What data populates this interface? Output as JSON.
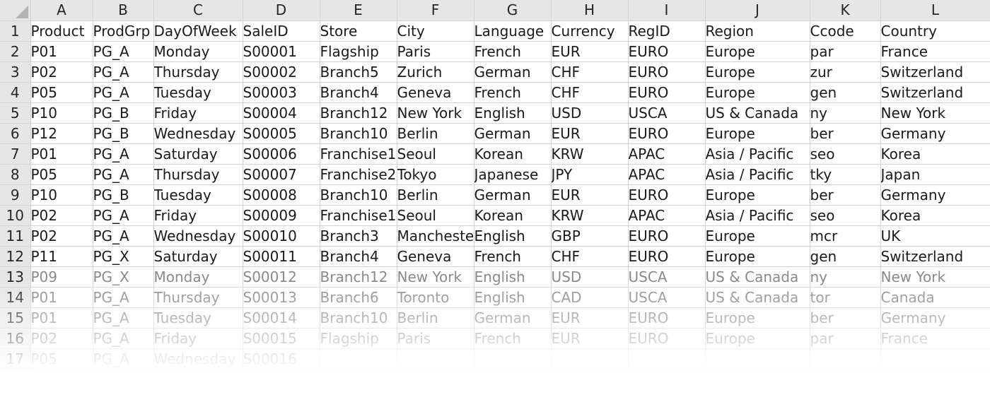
{
  "columns": [
    "A",
    "B",
    "C",
    "D",
    "E",
    "F",
    "G",
    "H",
    "I",
    "J",
    "K",
    "L"
  ],
  "rows": [
    {
      "num": "1",
      "cells": [
        "Product",
        "ProdGrp",
        "DayOfWeek",
        "SaleID",
        "Store",
        "City",
        "Language",
        "Currency",
        "RegID",
        "Region",
        "Ccode",
        "Country"
      ]
    },
    {
      "num": "2",
      "cells": [
        "P01",
        "PG_A",
        "Monday",
        "S00001",
        "Flagship",
        "Paris",
        "French",
        "EUR",
        "EURO",
        "Europe",
        "par",
        "France"
      ]
    },
    {
      "num": "3",
      "cells": [
        "P02",
        "PG_A",
        "Thursday",
        "S00002",
        "Branch5",
        "Zurich",
        "German",
        "CHF",
        "EURO",
        "Europe",
        "zur",
        "Switzerland"
      ]
    },
    {
      "num": "4",
      "cells": [
        "P05",
        "PG_A",
        "Tuesday",
        "S00003",
        "Branch4",
        "Geneva",
        "French",
        "CHF",
        "EURO",
        "Europe",
        "gen",
        "Switzerland"
      ]
    },
    {
      "num": "5",
      "cells": [
        "P10",
        "PG_B",
        "Friday",
        "S00004",
        "Branch12",
        "New York",
        "English",
        "USD",
        "USCA",
        "US & Canada",
        "ny",
        "New York"
      ]
    },
    {
      "num": "6",
      "cells": [
        "P12",
        "PG_B",
        "Wednesday",
        "S00005",
        "Branch10",
        "Berlin",
        "German",
        "EUR",
        "EURO",
        "Europe",
        "ber",
        "Germany"
      ]
    },
    {
      "num": "7",
      "cells": [
        "P01",
        "PG_A",
        "Saturday",
        "S00006",
        "Franchise1",
        "Seoul",
        "Korean",
        "KRW",
        "APAC",
        "Asia / Pacific",
        "seo",
        "Korea"
      ]
    },
    {
      "num": "8",
      "cells": [
        "P05",
        "PG_A",
        "Thursday",
        "S00007",
        "Franchise2",
        "Tokyo",
        "Japanese",
        "JPY",
        "APAC",
        "Asia / Pacific",
        "tky",
        "Japan"
      ]
    },
    {
      "num": "9",
      "cells": [
        "P10",
        "PG_B",
        "Tuesday",
        "S00008",
        "Branch10",
        "Berlin",
        "German",
        "EUR",
        "EURO",
        "Europe",
        "ber",
        "Germany"
      ]
    },
    {
      "num": "10",
      "cells": [
        "P02",
        "PG_A",
        "Friday",
        "S00009",
        "Franchise1",
        "Seoul",
        "Korean",
        "KRW",
        "APAC",
        "Asia / Pacific",
        "seo",
        "Korea"
      ]
    },
    {
      "num": "11",
      "cells": [
        "P02",
        "PG_A",
        "Wednesday",
        "S00010",
        "Branch3",
        "Manchester",
        "English",
        "GBP",
        "EURO",
        "Europe",
        "mcr",
        "UK"
      ]
    },
    {
      "num": "12",
      "cells": [
        "P11",
        "PG_X",
        "Saturday",
        "S00011",
        "Branch4",
        "Geneva",
        "French",
        "CHF",
        "EURO",
        "Europe",
        "gen",
        "Switzerland"
      ]
    },
    {
      "num": "13",
      "cells": [
        "P09",
        "PG_X",
        "Monday",
        "S00012",
        "Branch12",
        "New York",
        "English",
        "USD",
        "USCA",
        "US & Canada",
        "ny",
        "New York"
      ]
    },
    {
      "num": "14",
      "cells": [
        "P01",
        "PG_A",
        "Thursday",
        "S00013",
        "Branch6",
        "Toronto",
        "English",
        "CAD",
        "USCA",
        "US & Canada",
        "tor",
        "Canada"
      ]
    },
    {
      "num": "15",
      "cells": [
        "P01",
        "PG_A",
        "Tuesday",
        "S00014",
        "Branch10",
        "Berlin",
        "German",
        "EUR",
        "EURO",
        "Europe",
        "ber",
        "Germany"
      ]
    },
    {
      "num": "16",
      "cells": [
        "P02",
        "PG_A",
        "Friday",
        "S00015",
        "Flagship",
        "Paris",
        "French",
        "EUR",
        "EURO",
        "Europe",
        "par",
        "France"
      ]
    },
    {
      "num": "17",
      "cells": [
        "P05",
        "PG_A",
        "Wednesday",
        "S00016",
        "",
        "",
        "",
        "",
        "",
        "",
        "",
        ""
      ]
    }
  ]
}
